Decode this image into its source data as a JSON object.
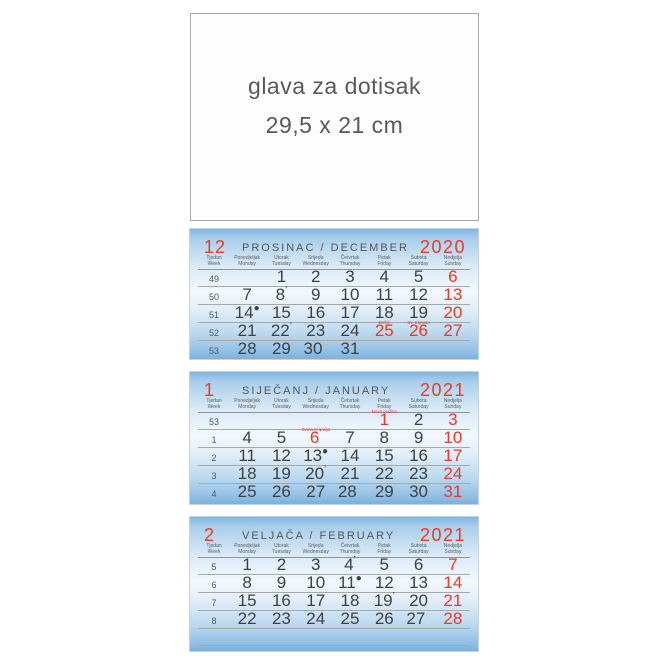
{
  "header_block": {
    "line1": "glava za dotisak",
    "line2": "29,5 x 21 cm"
  },
  "colors": {
    "accent_red": "#e63c28",
    "digit_dark": "#3f4145",
    "muted_gray": "#5b5d60",
    "row_line_gray": "#a4a9ae",
    "panel_blue_top": "#7fb6e2",
    "panel_blue_bottom": "#7bb2de"
  },
  "day_headers": [
    {
      "hr": "Tjedan",
      "en": "Week"
    },
    {
      "hr": "Ponedjeljak",
      "en": "Monday"
    },
    {
      "hr": "Utorak",
      "en": "Tuesday"
    },
    {
      "hr": "Srijeda",
      "en": "Wednesday"
    },
    {
      "hr": "Četvrtak",
      "en": "Thursday"
    },
    {
      "hr": "Petak",
      "en": "Friday"
    },
    {
      "hr": "Subota",
      "en": "Saturday"
    },
    {
      "hr": "Nedjelja",
      "en": "Sunday"
    }
  ],
  "panels": [
    {
      "month_num": "12",
      "month_name": "PROSINAC / DECEMBER",
      "year": "2020",
      "weeks": [
        {
          "week": "49",
          "days": [
            null,
            {
              "n": "1"
            },
            {
              "n": "2"
            },
            {
              "n": "3"
            },
            {
              "n": "4"
            },
            {
              "n": "5"
            },
            {
              "n": "6",
              "red": true
            }
          ]
        },
        {
          "week": "50",
          "days": [
            {
              "n": "7"
            },
            {
              "n": "8",
              "moon": "’"
            },
            {
              "n": "9"
            },
            {
              "n": "10"
            },
            {
              "n": "11"
            },
            {
              "n": "12"
            },
            {
              "n": "13",
              "red": true
            }
          ]
        },
        {
          "week": "51",
          "days": [
            {
              "n": "14",
              "moon": "●"
            },
            {
              "n": "15"
            },
            {
              "n": "16"
            },
            {
              "n": "17"
            },
            {
              "n": "18"
            },
            {
              "n": "19"
            },
            {
              "n": "20",
              "red": true
            }
          ]
        },
        {
          "week": "52",
          "days": [
            {
              "n": "21"
            },
            {
              "n": "22",
              "moon": "’"
            },
            {
              "n": "23"
            },
            {
              "n": "24"
            },
            {
              "n": "25",
              "red": true,
              "holiday": "Božić"
            },
            {
              "n": "26",
              "red": true,
              "holiday": "Sv. Stjepan"
            },
            {
              "n": "27",
              "red": true
            }
          ]
        },
        {
          "week": "53",
          "days": [
            {
              "n": "28"
            },
            {
              "n": "29"
            },
            {
              "n": "30",
              "moon": "○"
            },
            {
              "n": "31"
            },
            null,
            null,
            null
          ]
        }
      ]
    },
    {
      "month_num": "1",
      "month_name": "SIJEČANJ / JANUARY",
      "year": "2021",
      "weeks": [
        {
          "week": "53",
          "days": [
            null,
            null,
            null,
            null,
            {
              "n": "1",
              "red": true,
              "holiday": "Nova godina"
            },
            {
              "n": "2"
            },
            {
              "n": "3",
              "red": true
            }
          ]
        },
        {
          "week": "1",
          "days": [
            {
              "n": "4"
            },
            {
              "n": "5"
            },
            {
              "n": "6",
              "red": true,
              "moon": "’",
              "holiday": "Sveta tri kralja"
            },
            {
              "n": "7"
            },
            {
              "n": "8"
            },
            {
              "n": "9"
            },
            {
              "n": "10",
              "red": true
            }
          ]
        },
        {
          "week": "2",
          "days": [
            {
              "n": "11"
            },
            {
              "n": "12"
            },
            {
              "n": "13",
              "moon": "●"
            },
            {
              "n": "14"
            },
            {
              "n": "15"
            },
            {
              "n": "16"
            },
            {
              "n": "17",
              "red": true
            }
          ]
        },
        {
          "week": "3",
          "days": [
            {
              "n": "18"
            },
            {
              "n": "19"
            },
            {
              "n": "20",
              "moon": "’"
            },
            {
              "n": "21"
            },
            {
              "n": "22"
            },
            {
              "n": "23"
            },
            {
              "n": "24",
              "red": true
            }
          ]
        },
        {
          "week": "4",
          "days": [
            {
              "n": "25"
            },
            {
              "n": "26"
            },
            {
              "n": "27"
            },
            {
              "n": "28",
              "moon": "○"
            },
            {
              "n": "29"
            },
            {
              "n": "30"
            },
            {
              "n": "31",
              "red": true
            }
          ]
        }
      ]
    },
    {
      "month_num": "2",
      "month_name": "VELJAČA / FEBRUARY",
      "year": "2021",
      "weeks": [
        {
          "week": "5",
          "days": [
            {
              "n": "1"
            },
            {
              "n": "2"
            },
            {
              "n": "3"
            },
            {
              "n": "4",
              "moon": "’"
            },
            {
              "n": "5"
            },
            {
              "n": "6"
            },
            {
              "n": "7",
              "red": true
            }
          ]
        },
        {
          "week": "6",
          "days": [
            {
              "n": "8"
            },
            {
              "n": "9"
            },
            {
              "n": "10"
            },
            {
              "n": "11",
              "moon": "●"
            },
            {
              "n": "12"
            },
            {
              "n": "13"
            },
            {
              "n": "14",
              "red": true
            }
          ]
        },
        {
          "week": "7",
          "days": [
            {
              "n": "15"
            },
            {
              "n": "16"
            },
            {
              "n": "17"
            },
            {
              "n": "18"
            },
            {
              "n": "19",
              "moon": "’"
            },
            {
              "n": "20"
            },
            {
              "n": "21",
              "red": true
            }
          ]
        },
        {
          "week": "8",
          "days": [
            {
              "n": "22"
            },
            {
              "n": "23"
            },
            {
              "n": "24"
            },
            {
              "n": "25"
            },
            {
              "n": "26"
            },
            {
              "n": "27",
              "moon": "○"
            },
            {
              "n": "28",
              "red": true
            }
          ]
        },
        {
          "week": "",
          "days": [
            null,
            null,
            null,
            null,
            null,
            null,
            null
          ]
        }
      ]
    }
  ]
}
